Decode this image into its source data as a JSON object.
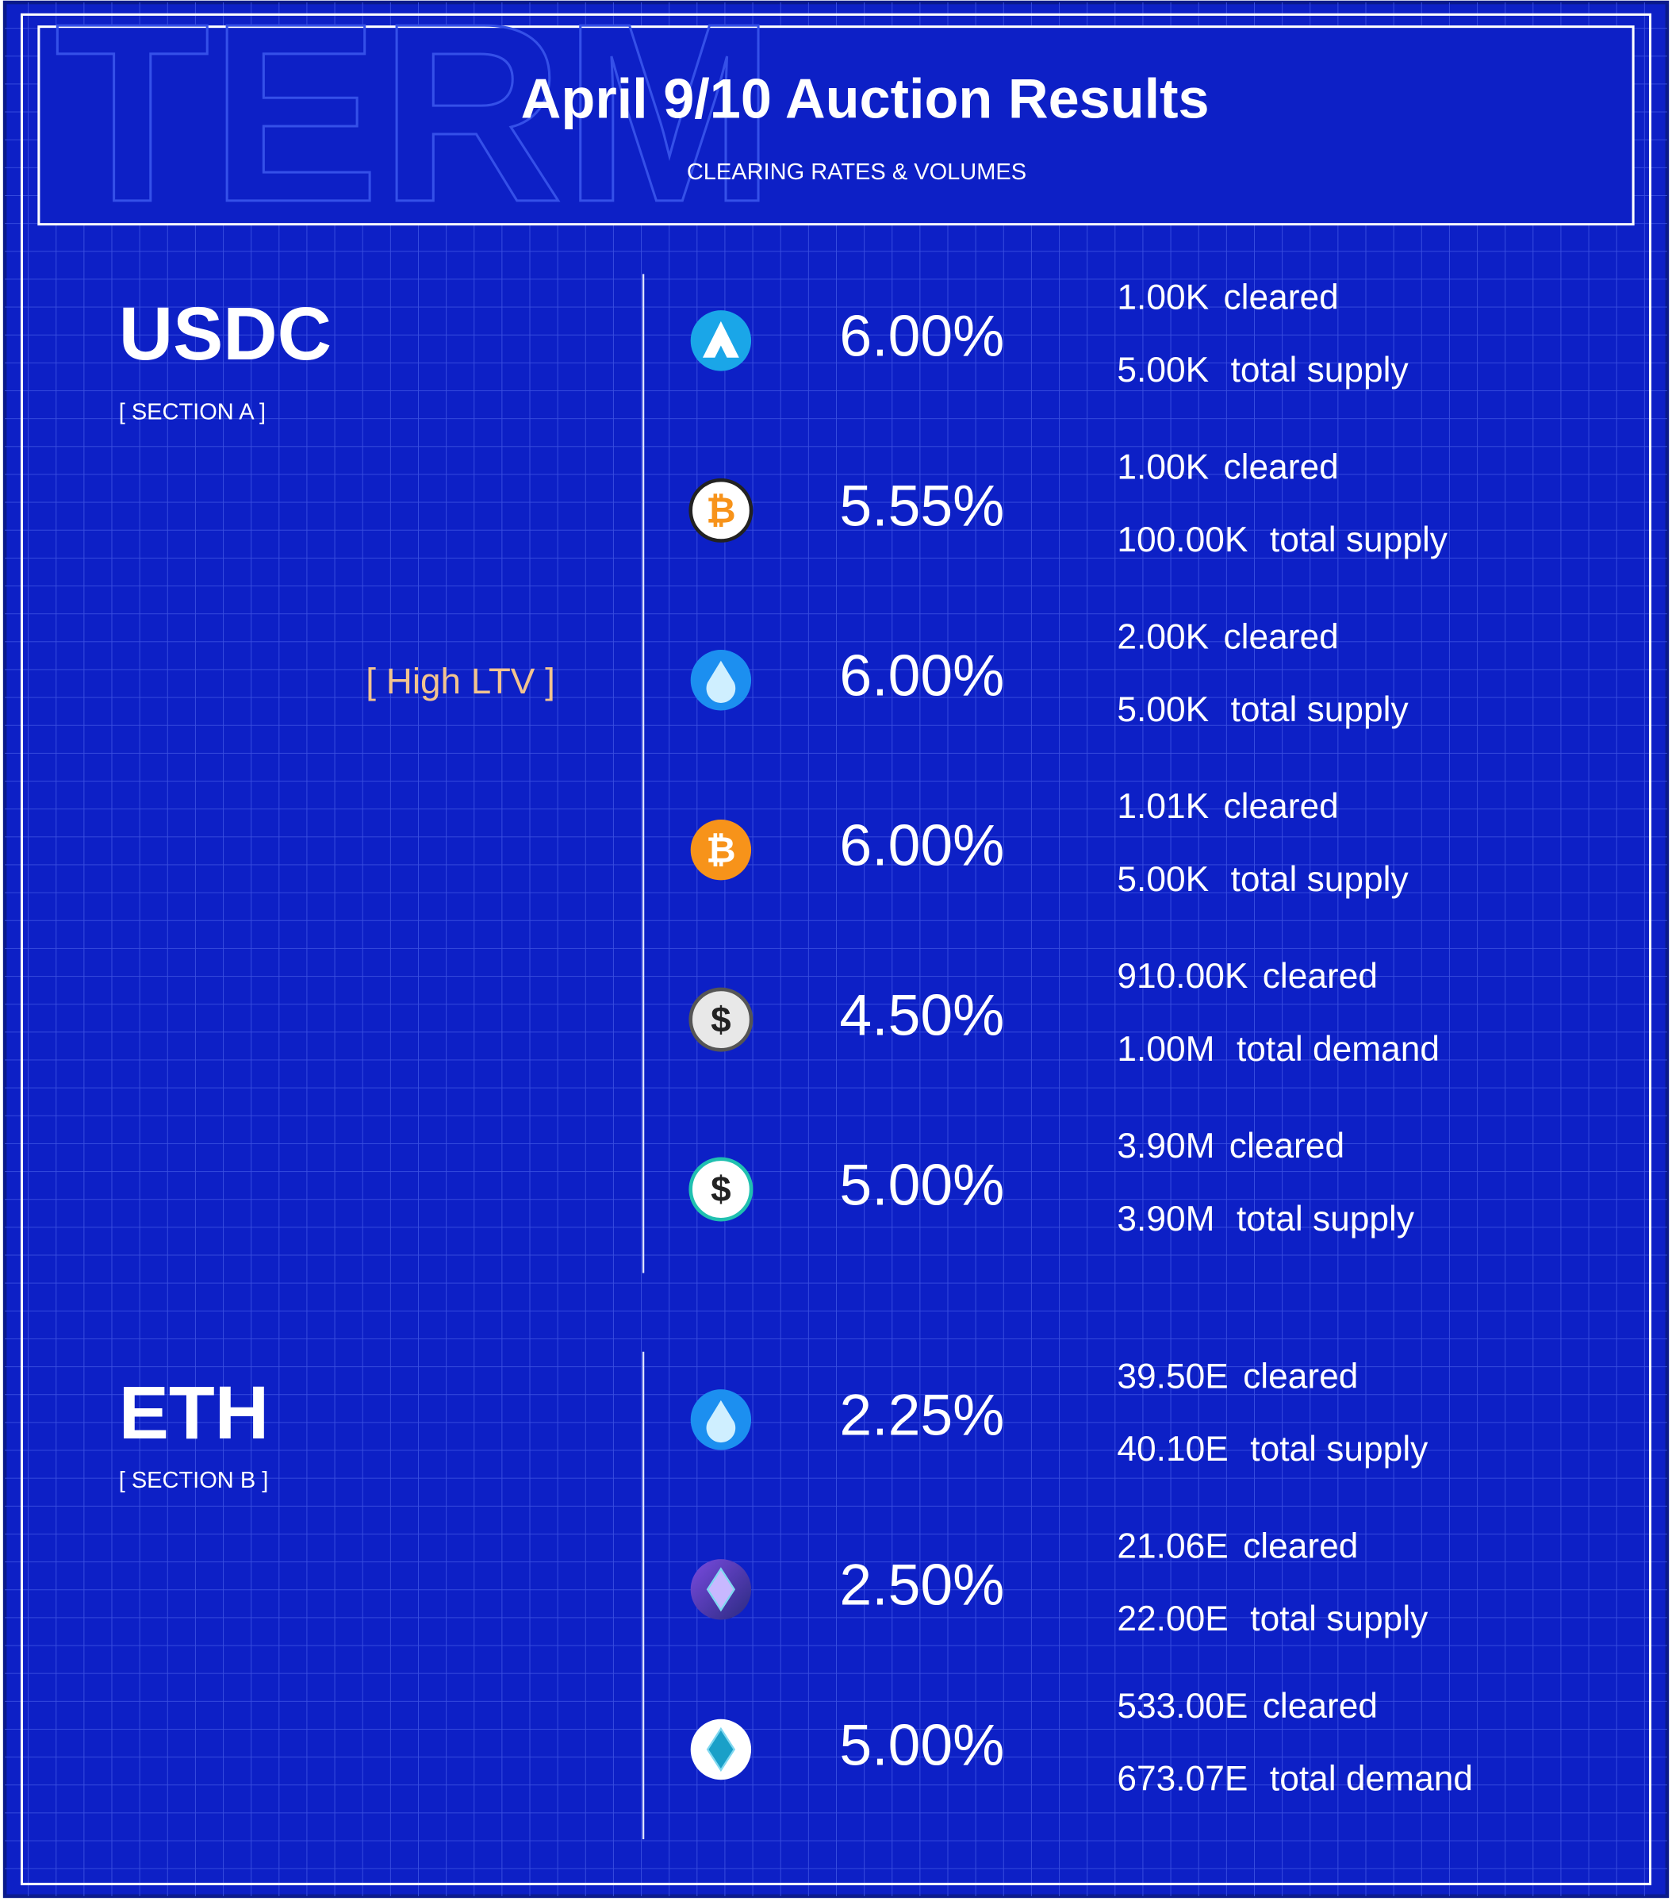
{
  "header": {
    "watermark": "TERM",
    "title": "April 9/10 Auction Results",
    "subtitle": "CLEARING RATES & VOLUMES"
  },
  "sections": [
    {
      "name": "USDC",
      "label": "[ SECTION A ]",
      "note": "[ High LTV ]",
      "rows": [
        {
          "rate": "6.00%",
          "cleared": "1.00K",
          "cleared_label": "cleared",
          "total": "5.00K",
          "total_label": "total supply"
        },
        {
          "rate": "5.55%",
          "cleared": "1.00K",
          "cleared_label": "cleared",
          "total": "100.00K",
          "total_label": "total supply"
        },
        {
          "rate": "6.00%",
          "cleared": "2.00K",
          "cleared_label": "cleared",
          "total": "5.00K",
          "total_label": "total supply"
        },
        {
          "rate": "6.00%",
          "cleared": "1.01K",
          "cleared_label": "cleared",
          "total": "5.00K",
          "total_label": "total supply"
        },
        {
          "rate": "4.50%",
          "cleared": "910.00K",
          "cleared_label": "cleared",
          "total": "1.00M",
          "total_label": "total demand"
        },
        {
          "rate": "5.00%",
          "cleared": "3.90M",
          "cleared_label": "cleared",
          "total": "3.90M",
          "total_label": "total supply"
        }
      ]
    },
    {
      "name": "ETH",
      "label": "[ SECTION B ]",
      "rows": [
        {
          "rate": "2.25%",
          "cleared": "39.50E",
          "cleared_label": "cleared",
          "total": "40.10E",
          "total_label": "total supply"
        },
        {
          "rate": "2.50%",
          "cleared": "21.06E",
          "cleared_label": "cleared",
          "total": "22.00E",
          "total_label": "total supply"
        },
        {
          "rate": "5.00%",
          "cleared": "533.00E",
          "cleared_label": "cleared",
          "total": "673.07E",
          "total_label": "total demand"
        }
      ]
    }
  ]
}
